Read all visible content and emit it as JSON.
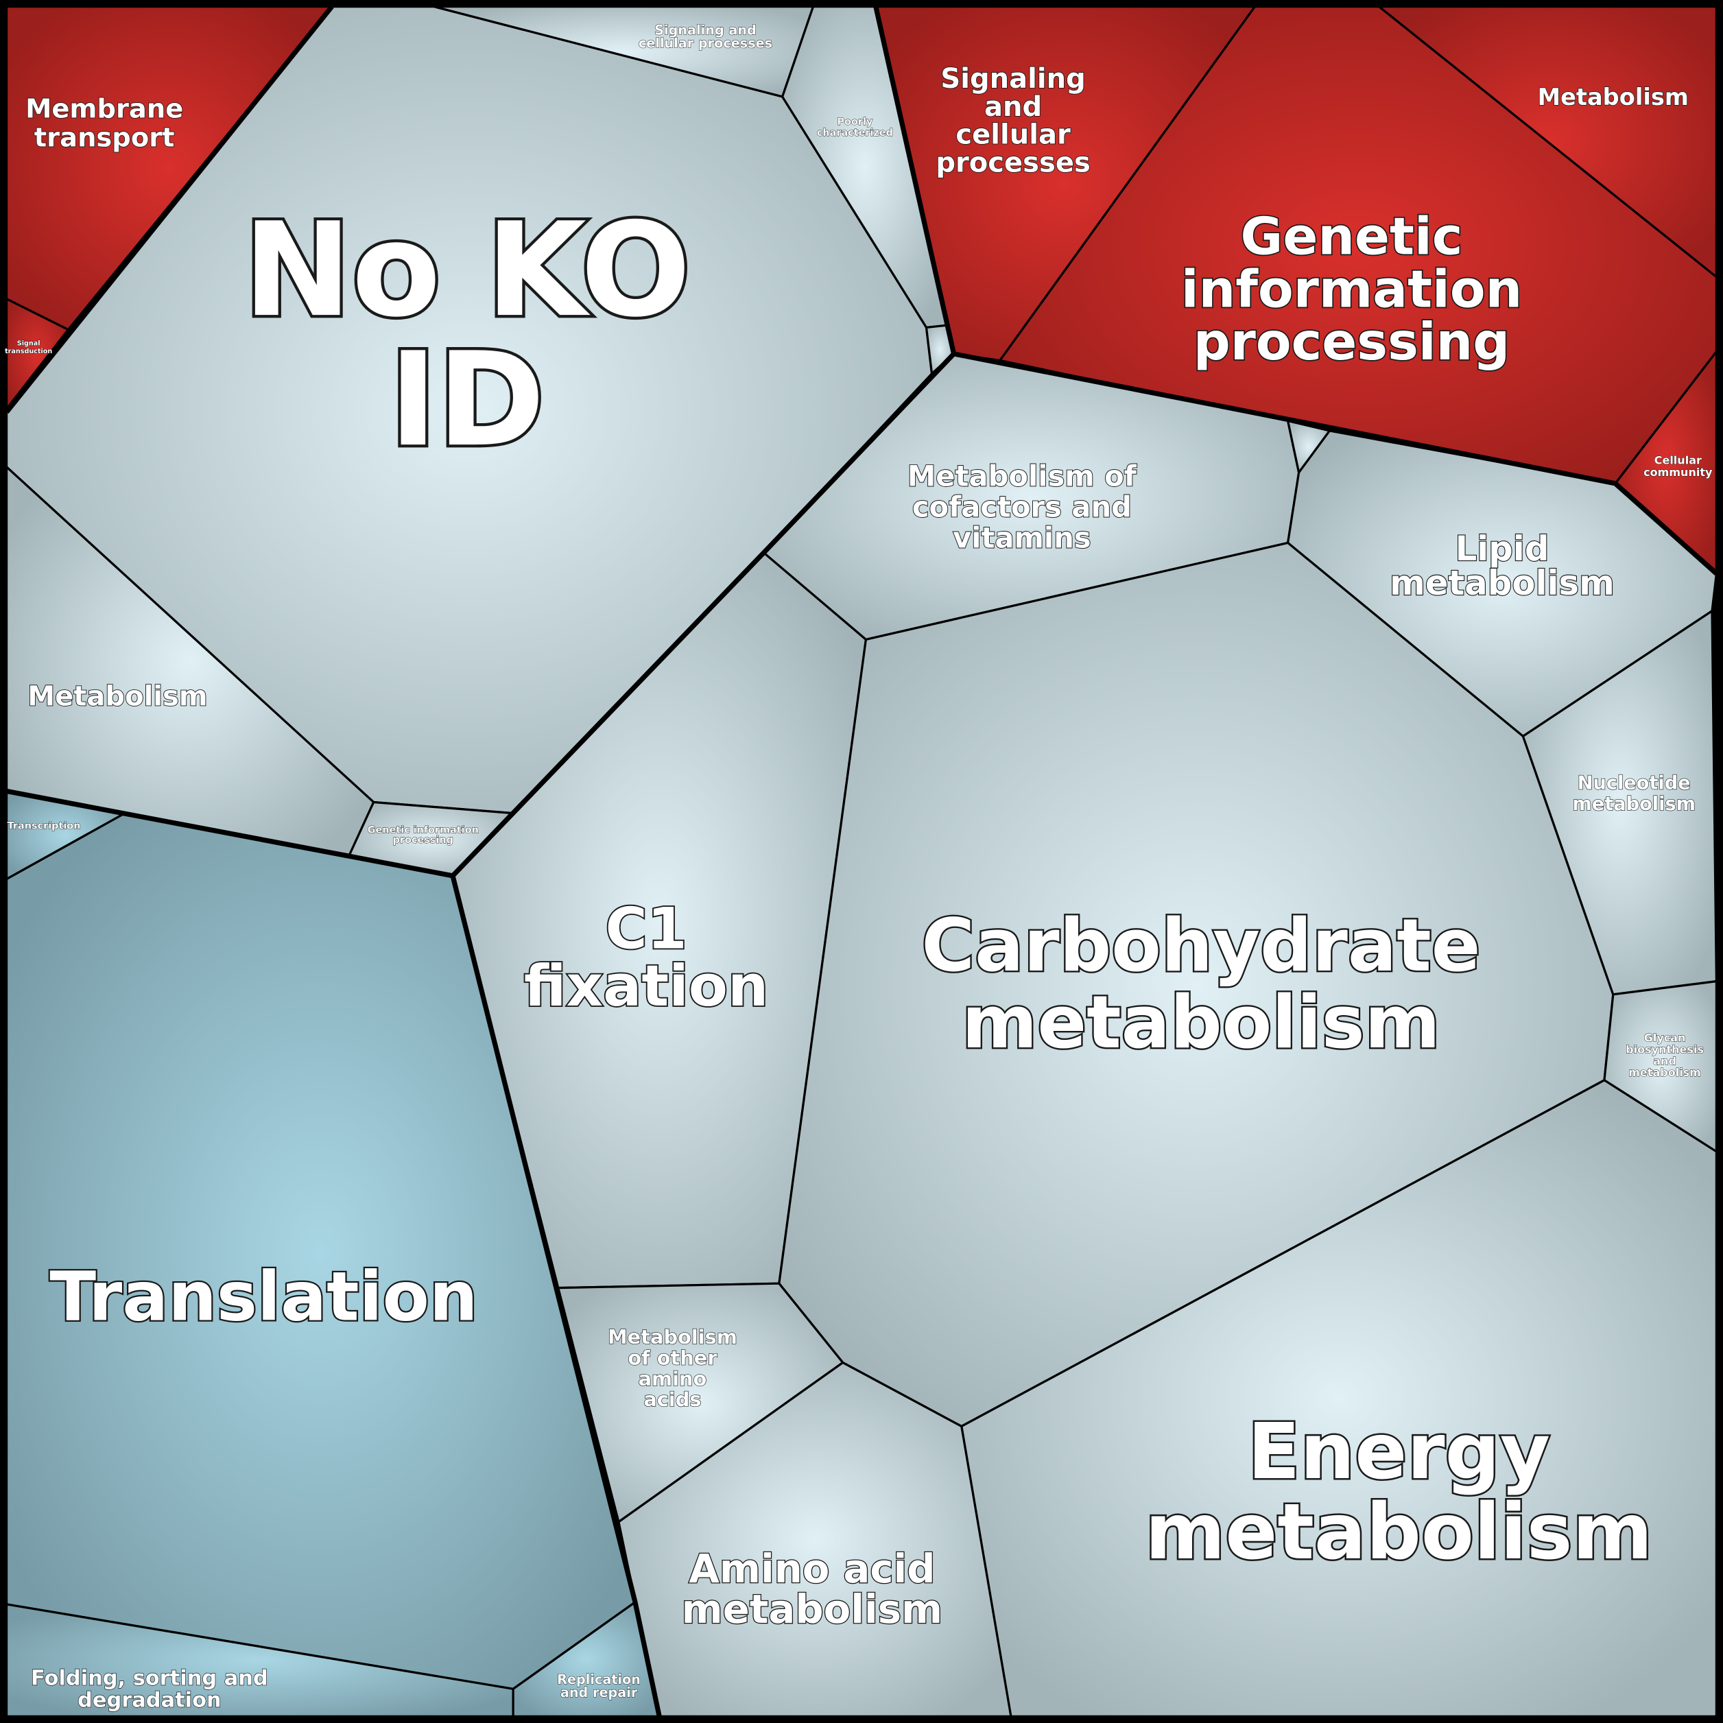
{
  "cells": [
    {
      "lines": [
        "Membrane",
        "transport"
      ]
    },
    {
      "lines": [
        "Signal",
        "transduction"
      ]
    },
    {
      "lines": [
        "No KO",
        "ID"
      ]
    },
    {
      "lines": [
        "Signaling and",
        "cellular processes"
      ]
    },
    {
      "lines": [
        "Poorly",
        "characterized"
      ]
    },
    {
      "lines": [
        "Metabolism"
      ]
    },
    {
      "lines": [
        "Genetic information",
        "processing"
      ]
    },
    {
      "lines": [
        "Transcription"
      ]
    },
    {
      "lines": [
        "Translation"
      ]
    },
    {
      "lines": [
        "Folding, sorting and",
        "degradation"
      ]
    },
    {
      "lines": [
        "Replication",
        "and repair"
      ]
    },
    {
      "lines": [
        "Signaling",
        "and",
        "cellular",
        "processes"
      ]
    },
    {
      "lines": [
        "Genetic",
        "information",
        "processing"
      ]
    },
    {
      "lines": [
        "Metabolism"
      ]
    },
    {
      "lines": [
        "Cellular",
        "community"
      ]
    },
    {
      "lines": [
        "Metabolism of",
        "cofactors and",
        "vitamins"
      ]
    },
    {
      "lines": [
        "Lipid",
        "metabolism"
      ]
    },
    {
      "lines": [
        "C1",
        "fixation"
      ]
    },
    {
      "lines": [
        "Carbohydrate",
        "metabolism"
      ]
    },
    {
      "lines": [
        "Nucleotide",
        "metabolism"
      ]
    },
    {
      "lines": [
        "Glycan",
        "biosynthesis",
        "and",
        "metabolism"
      ]
    },
    {
      "lines": [
        "Metabolism",
        "of other",
        "amino",
        "acids"
      ]
    },
    {
      "lines": [
        "Amino acid",
        "metabolism"
      ]
    },
    {
      "lines": [
        "Energy",
        "metabolism"
      ]
    }
  ]
}
